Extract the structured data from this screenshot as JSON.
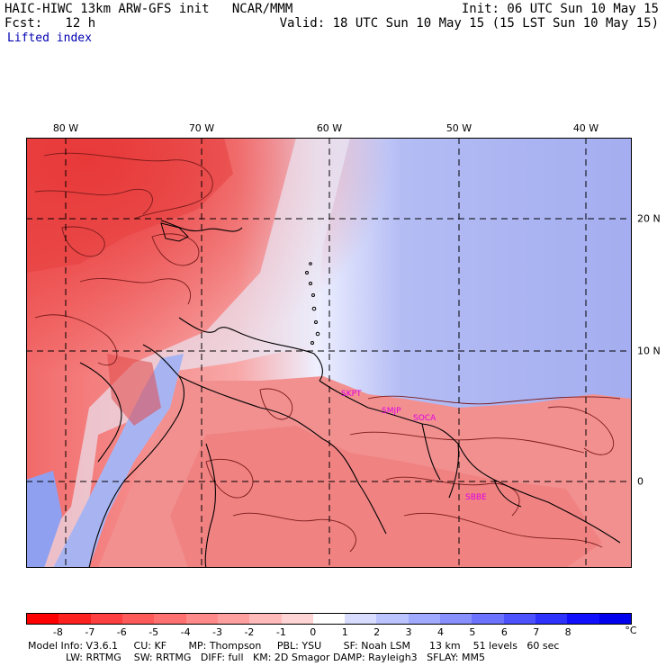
{
  "header": {
    "line1_left": "HAIC-HIWC 13km ARW-GFS init   NCAR/MMM",
    "line1_right": "Init: 06 UTC Sun 10 May 15",
    "line2_left": "Fcst:   12 h",
    "line2_right": "Valid: 18 UTC Sun 10 May 15 (15 LST Sun 10 May 15)",
    "field_title": "Lifted index"
  },
  "map": {
    "lon_labels": [
      "80 W",
      "70 W",
      "60 W",
      "50 W",
      "40 W"
    ],
    "lat_labels": [
      "20 N",
      "10 N",
      "0"
    ],
    "station_labels": [
      "SKPT",
      "SMJP",
      "SOCA",
      "SBBE"
    ],
    "colors": {
      "warm": "#f04848",
      "neutral": "#ffffff",
      "cool": "#8090f0",
      "contour": "#7a1a1a",
      "coast": "#000000",
      "station": "#e000e0"
    }
  },
  "colorbar": {
    "unit": "°C",
    "ticks": [
      "-8",
      "-7",
      "-6",
      "-5",
      "-4",
      "-3",
      "-2",
      "-1",
      "0",
      "1",
      "2",
      "3",
      "4",
      "5",
      "6",
      "7",
      "8"
    ],
    "colors": [
      "#ff0000",
      "#ff2020",
      "#ff4040",
      "#ff5a5a",
      "#ff7070",
      "#ff8a8a",
      "#ffa0a0",
      "#ffbaba",
      "#ffd4d4",
      "#ffffff",
      "#d8dcff",
      "#bcc4ff",
      "#a0aaff",
      "#8890ff",
      "#6a72ff",
      "#4c52ff",
      "#2e32ff",
      "#1010ff",
      "#0000ee"
    ]
  },
  "footer": {
    "line1": "Model Info: V3.6.1     CU: KF       MP: Thompson     PBL: YSU       SF: Noah LSM      13 km    51 levels   60 sec",
    "line2": "            LW: RRTMG    SW: RRTMG   DIFF: full   KM: 2D Smagor DAMP: Rayleigh3   SFLAY: MM5"
  }
}
